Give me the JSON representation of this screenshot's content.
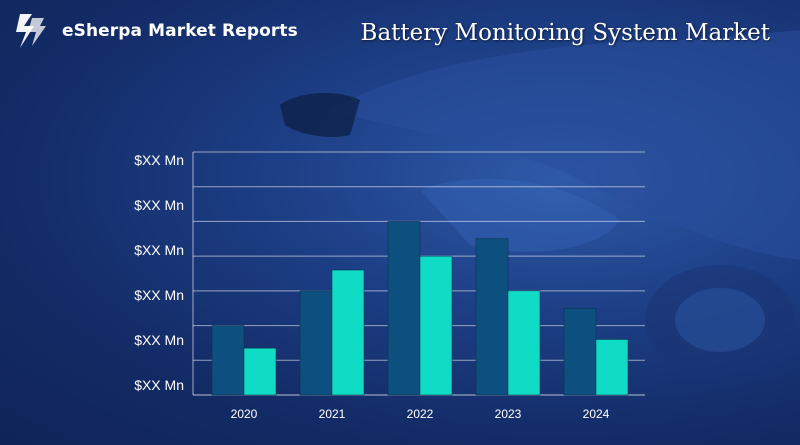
{
  "brand": {
    "name": "eSherpa Market Reports"
  },
  "colors": {
    "series_dark": "#0d4f7e",
    "series_light": "#10dcc5",
    "grid": "#ffffff",
    "background": "#1d3f86"
  },
  "chart_data": {
    "type": "bar",
    "title": "Battery Monitoring System Market",
    "categories": [
      "2020",
      "2021",
      "2022",
      "2023",
      "2024"
    ],
    "series": [
      {
        "values": [
          2.0,
          3.0,
          5.0,
          4.5,
          2.5
        ]
      },
      {
        "values": [
          1.35,
          3.6,
          4.0,
          3.0,
          1.6
        ]
      }
    ],
    "y_tick_labels": [
      "$XX Mn",
      "$XX Mn",
      "$XX Mn",
      "$XX Mn",
      "$XX Mn",
      "$XX Mn"
    ],
    "ylim": [
      0,
      7
    ],
    "grid": true,
    "legend": "none"
  }
}
